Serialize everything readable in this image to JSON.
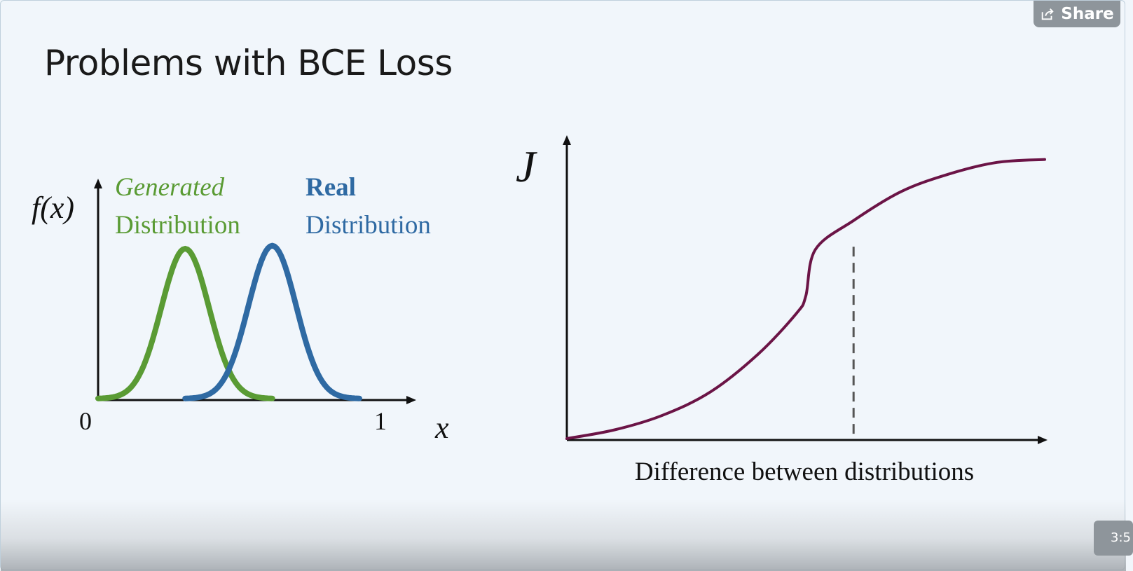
{
  "slide": {
    "title": "Problems with BCE Loss"
  },
  "controls": {
    "share_label": "Share",
    "time_label": "3:5"
  },
  "colors": {
    "generated": "#5a9b34",
    "real": "#2f6aa3",
    "cost": "#6b1446",
    "background": "#f1f6fb"
  },
  "chart_data": [
    {
      "type": "line",
      "title": "",
      "xlabel": "x",
      "ylabel": "f(x)",
      "xlim": [
        0,
        1
      ],
      "x_ticks": [
        "0",
        "1"
      ],
      "series": [
        {
          "name": "Generated Distribution",
          "name_line1": "Generated",
          "name_line2": "Distribution",
          "mean": 0.31,
          "std": 0.085,
          "peak": 1.0,
          "x_range": [
            0.0,
            0.62
          ]
        },
        {
          "name": "Real Distribution",
          "name_line1": "Real",
          "name_line2": "Distribution",
          "mean": 0.62,
          "std": 0.085,
          "peak": 1.02,
          "x_range": [
            0.31,
            0.93
          ]
        }
      ]
    },
    {
      "type": "line",
      "title": "",
      "xlabel": "Difference between distributions",
      "ylabel": "J",
      "xlim": [
        0,
        1
      ],
      "ylim": [
        0,
        1
      ],
      "series": [
        {
          "name": "",
          "x": [
            0.0,
            0.1,
            0.2,
            0.3,
            0.4,
            0.48,
            0.5,
            0.52,
            0.6,
            0.7,
            0.8,
            0.9,
            1.0
          ],
          "y": [
            0.0,
            0.03,
            0.08,
            0.16,
            0.29,
            0.43,
            0.49,
            0.65,
            0.75,
            0.85,
            0.91,
            0.95,
            0.96
          ]
        }
      ],
      "annotations": [
        {
          "type": "dashed_vertical_line",
          "x": 0.6,
          "y_top": 0.66
        }
      ]
    }
  ]
}
